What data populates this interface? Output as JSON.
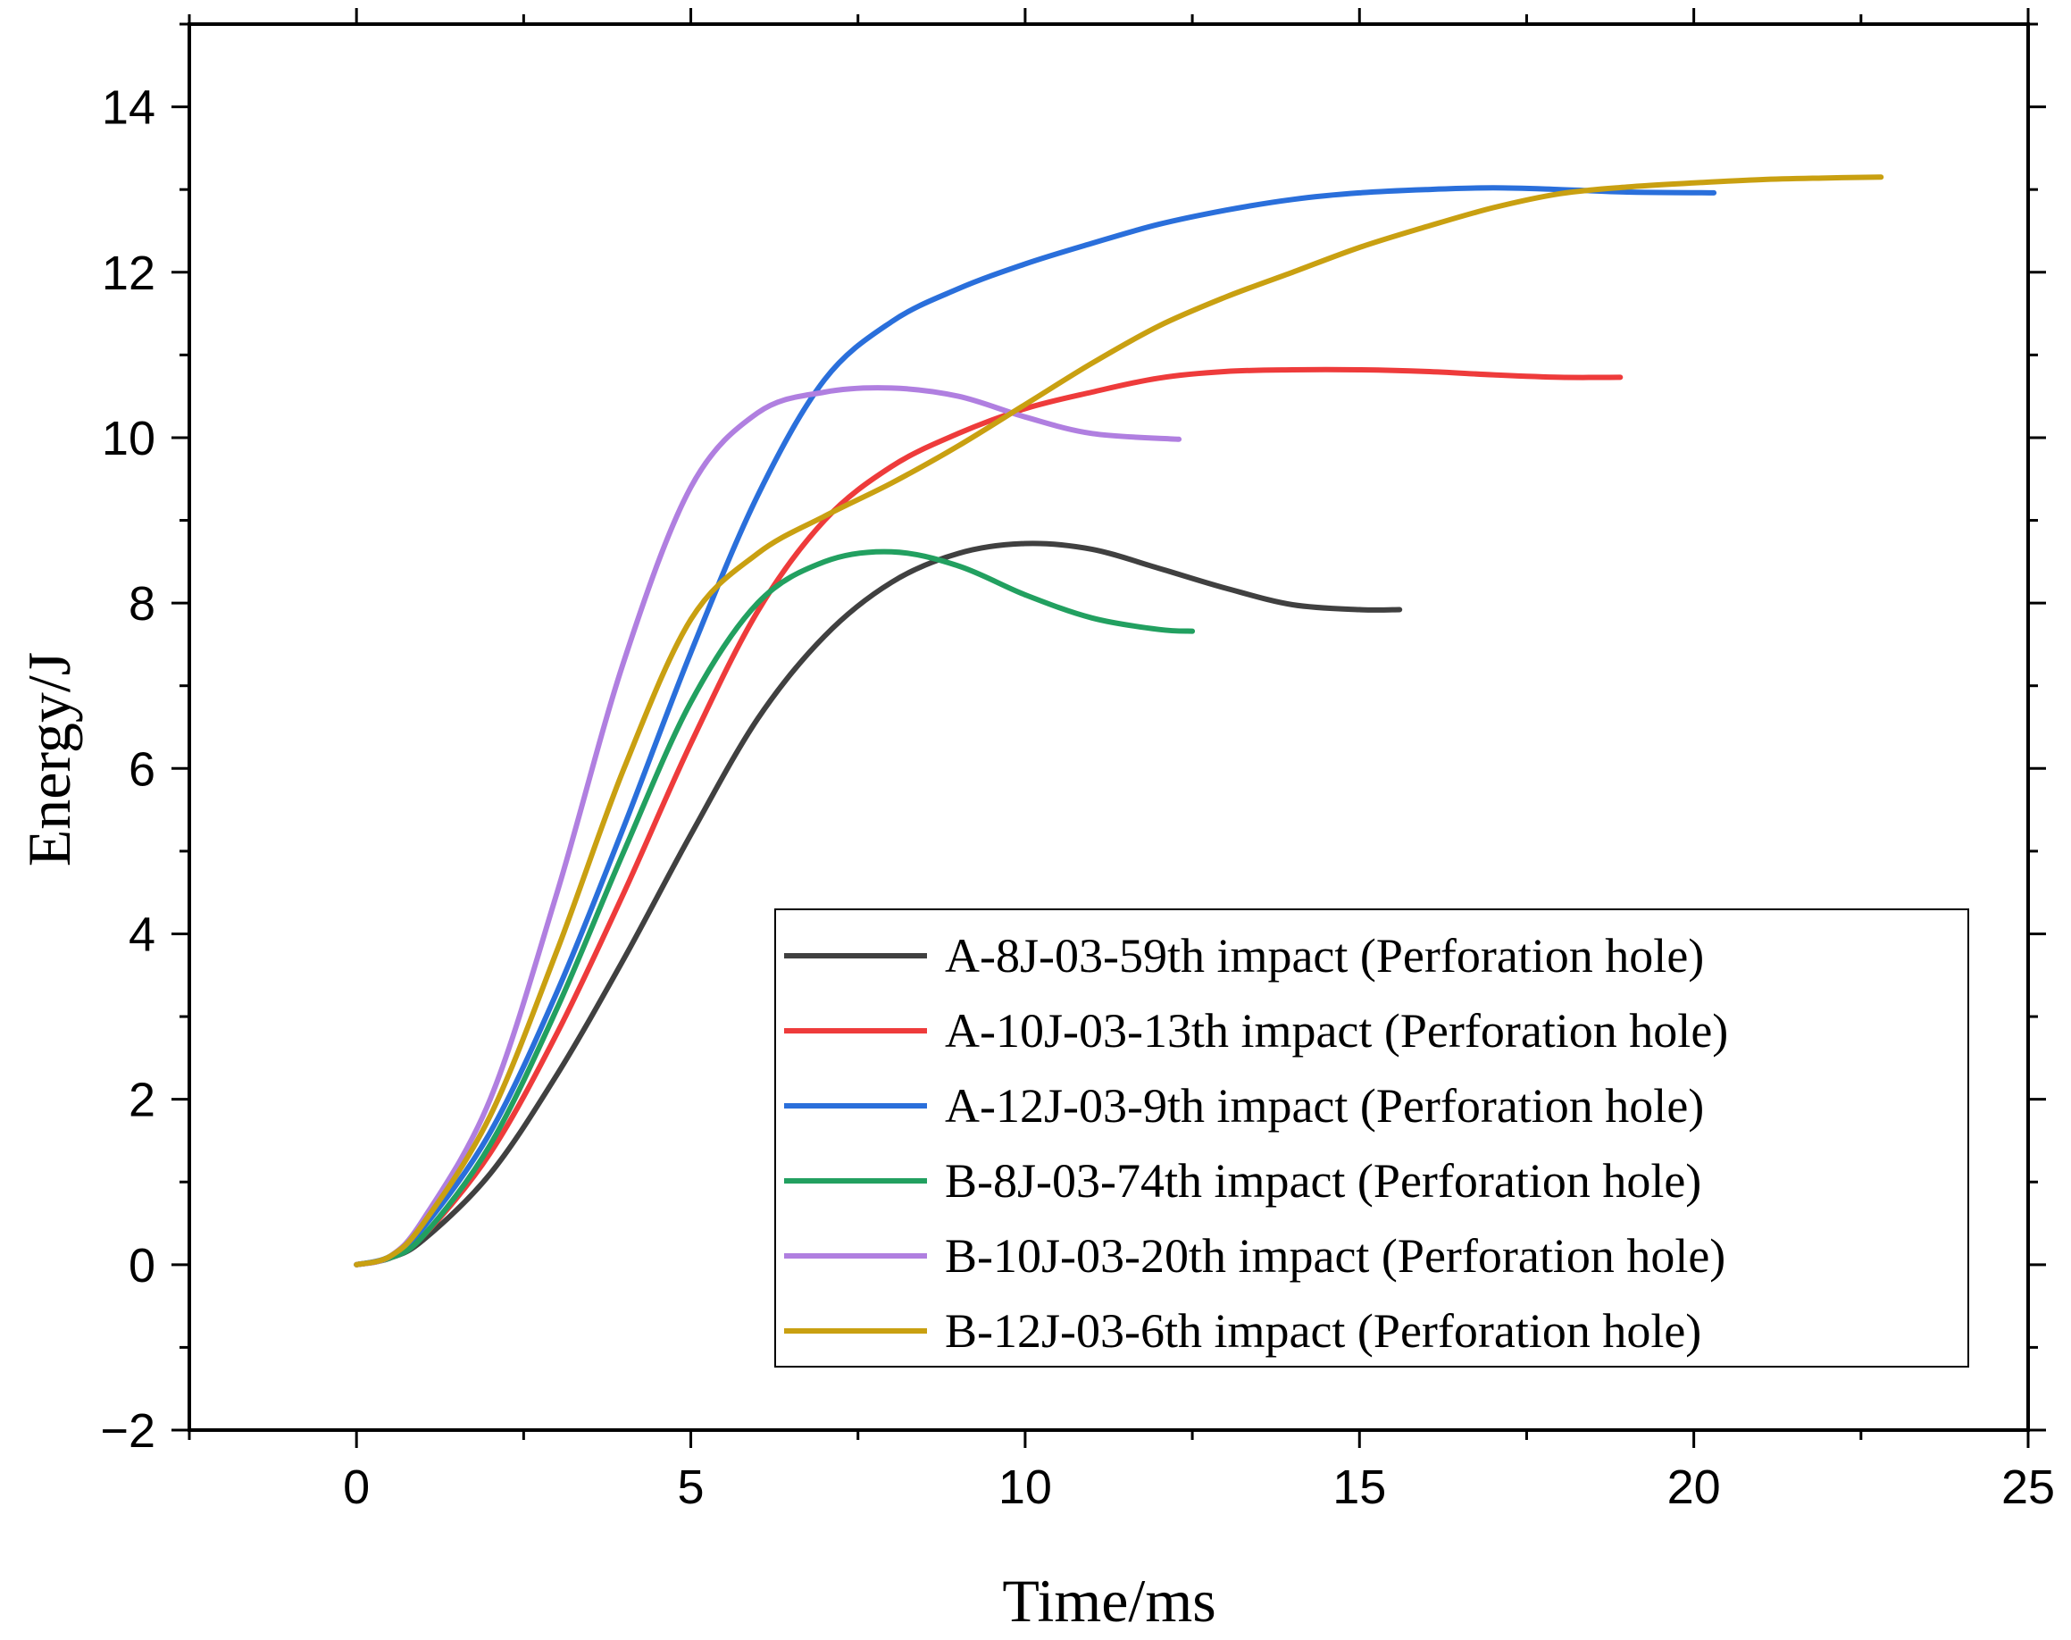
{
  "chart_data": {
    "type": "line",
    "title": "",
    "xlabel": "Time/ms",
    "ylabel": "Energy/J",
    "xlim": [
      -2.5,
      25
    ],
    "ylim": [
      -2,
      15
    ],
    "xticks": [
      0,
      5,
      10,
      15,
      20,
      25
    ],
    "yticks": [
      -2,
      0,
      2,
      4,
      6,
      8,
      10,
      12,
      14
    ],
    "xtick_labels": [
      "0",
      "5",
      "10",
      "15",
      "20",
      "25"
    ],
    "ytick_labels": [
      "−2",
      "0",
      "2",
      "4",
      "6",
      "8",
      "10",
      "12",
      "14"
    ],
    "grid": false,
    "legend_position": "bottom-right",
    "series": [
      {
        "name": "A-8J-03-59th impact (Perforation hole)",
        "color": "#404040",
        "x": [
          0,
          0.5,
          1,
          2,
          3,
          4,
          5,
          6,
          7,
          8,
          9,
          10,
          11,
          12,
          13,
          14,
          15,
          15.6
        ],
        "y": [
          0,
          0.08,
          0.3,
          1.1,
          2.3,
          3.7,
          5.2,
          6.6,
          7.6,
          8.25,
          8.6,
          8.72,
          8.65,
          8.42,
          8.18,
          7.98,
          7.92,
          7.92
        ]
      },
      {
        "name": "A-10J-03-13th impact (Perforation hole)",
        "color": "#ee3b3b",
        "x": [
          0,
          0.5,
          1,
          2,
          3,
          4,
          5,
          6,
          7,
          8,
          9,
          10,
          11,
          12,
          13,
          14,
          15,
          16,
          17,
          18,
          18.9
        ],
        "y": [
          0,
          0.08,
          0.35,
          1.35,
          2.8,
          4.5,
          6.3,
          7.9,
          9.0,
          9.65,
          10.05,
          10.35,
          10.55,
          10.72,
          10.8,
          10.82,
          10.82,
          10.8,
          10.76,
          10.73,
          10.73
        ]
      },
      {
        "name": "A-12J-03-9th impact (Perforation hole)",
        "color": "#2a6fdb",
        "x": [
          0,
          0.5,
          1,
          2,
          3,
          4,
          5,
          6,
          7,
          8,
          9,
          10,
          11,
          12,
          13,
          14,
          15,
          16,
          17,
          18,
          19,
          20.3
        ],
        "y": [
          0,
          0.1,
          0.45,
          1.6,
          3.3,
          5.3,
          7.4,
          9.3,
          10.7,
          11.4,
          11.8,
          12.1,
          12.35,
          12.58,
          12.75,
          12.88,
          12.96,
          13.0,
          13.02,
          13.0,
          12.97,
          12.96
        ]
      },
      {
        "name": "B-8J-03-74th impact (Perforation hole)",
        "color": "#22a060",
        "x": [
          0,
          0.5,
          1,
          2,
          3,
          4,
          5,
          6,
          7,
          8,
          9,
          10,
          11,
          12,
          12.5
        ],
        "y": [
          0,
          0.08,
          0.35,
          1.45,
          3.1,
          5.0,
          6.8,
          8.0,
          8.5,
          8.62,
          8.45,
          8.1,
          7.82,
          7.68,
          7.66
        ]
      },
      {
        "name": "B-10J-03-20th impact (Perforation hole)",
        "color": "#b07fe0",
        "x": [
          0,
          0.5,
          1,
          2,
          3,
          4,
          5,
          6,
          7,
          8,
          9,
          10,
          11,
          12.3
        ],
        "y": [
          0,
          0.1,
          0.55,
          2.0,
          4.5,
          7.3,
          9.4,
          10.3,
          10.55,
          10.6,
          10.5,
          10.25,
          10.05,
          9.98
        ]
      },
      {
        "name": "B-12J-03-6th impact (Perforation hole)",
        "color": "#c9a011",
        "x": [
          0,
          0.5,
          1,
          2,
          3,
          4,
          5,
          6,
          7,
          8,
          9,
          10,
          11,
          12,
          13,
          14,
          15,
          16,
          17,
          18,
          19,
          20,
          21,
          22,
          22.8
        ],
        "y": [
          0,
          0.1,
          0.5,
          1.8,
          3.8,
          6.0,
          7.8,
          8.6,
          9.05,
          9.45,
          9.9,
          10.4,
          10.9,
          11.35,
          11.7,
          12.0,
          12.3,
          12.55,
          12.78,
          12.95,
          13.03,
          13.08,
          13.12,
          13.14,
          13.15
        ]
      }
    ]
  }
}
